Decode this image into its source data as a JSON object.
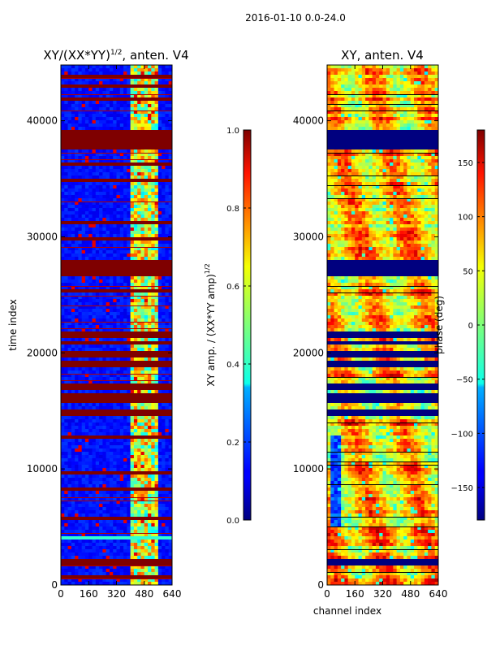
{
  "figure": {
    "suptitle": "2016-01-10 0.0-24.0"
  },
  "chart_data": [
    {
      "type": "heatmap",
      "title": "XY/(XX*YY)^{1/2}, anten. V4",
      "title_main": "XY/(XX*YY)",
      "title_exp": "1/2",
      "title_tail": ", anten. V4",
      "xlabel": "",
      "ylabel": "time index",
      "xlim": [
        0,
        640
      ],
      "ylim": [
        0,
        44800
      ],
      "xticks": [
        0,
        160,
        320,
        480,
        640
      ],
      "yticks": [
        0,
        10000,
        20000,
        30000,
        40000
      ],
      "background_value": 0.1,
      "bright_channel_range": [
        410,
        560
      ],
      "saturated_bands": [
        [
          43600,
          44000
        ],
        [
          42800,
          43100
        ],
        [
          41800,
          42000
        ],
        [
          37600,
          39100
        ],
        [
          36200,
          36400
        ],
        [
          34800,
          35000
        ],
        [
          32400,
          32600
        ],
        [
          31000,
          31300
        ],
        [
          29800,
          30000
        ],
        [
          26500,
          28000
        ],
        [
          25200,
          25400
        ],
        [
          21400,
          21900
        ],
        [
          20600,
          21000
        ],
        [
          19600,
          20200
        ],
        [
          18700,
          19200
        ],
        [
          16800,
          17400
        ],
        [
          15800,
          16400
        ],
        [
          14600,
          15200
        ],
        [
          12600,
          12800
        ],
        [
          9600,
          9800
        ],
        [
          8200,
          8400
        ],
        [
          5600,
          5800
        ],
        [
          1700,
          2300
        ],
        [
          500,
          700
        ]
      ],
      "cyan_bands": [
        [
          3800,
          4200
        ]
      ],
      "colorbar": {
        "label": "XY amp. / (XX*YY amp)^{1/2}",
        "label_main": "XY amp. / (XX*YY amp)",
        "label_exp": "1/2",
        "range": [
          0.0,
          1.0
        ],
        "ticks": [
          "0.0",
          "0.2",
          "0.4",
          "0.6",
          "0.8",
          "1.0"
        ]
      }
    },
    {
      "type": "heatmap",
      "title": "XY, anten. V4",
      "xlabel": "channel index",
      "ylabel": "",
      "xlim": [
        0,
        640
      ],
      "ylim": [
        0,
        44800
      ],
      "xticks": [
        0,
        160,
        320,
        480,
        640
      ],
      "yticks": [
        0,
        10000,
        20000,
        30000,
        40000
      ],
      "masked_bands": [
        [
          37600,
          39100
        ],
        [
          26500,
          28000
        ],
        [
          21400,
          21900
        ],
        [
          20600,
          21000
        ],
        [
          19600,
          20200
        ],
        [
          18700,
          19200
        ],
        [
          16800,
          17400
        ],
        [
          15800,
          16400
        ],
        [
          14600,
          15200
        ],
        [
          1700,
          2300
        ]
      ],
      "colorbar": {
        "label": "phase (deg)",
        "range": [
          -180,
          180
        ],
        "ticks": [
          "−150",
          "−100",
          "−50",
          "0",
          "50",
          "100",
          "150"
        ],
        "tick_values": [
          -150,
          -100,
          -50,
          0,
          50,
          100,
          150
        ]
      }
    }
  ]
}
